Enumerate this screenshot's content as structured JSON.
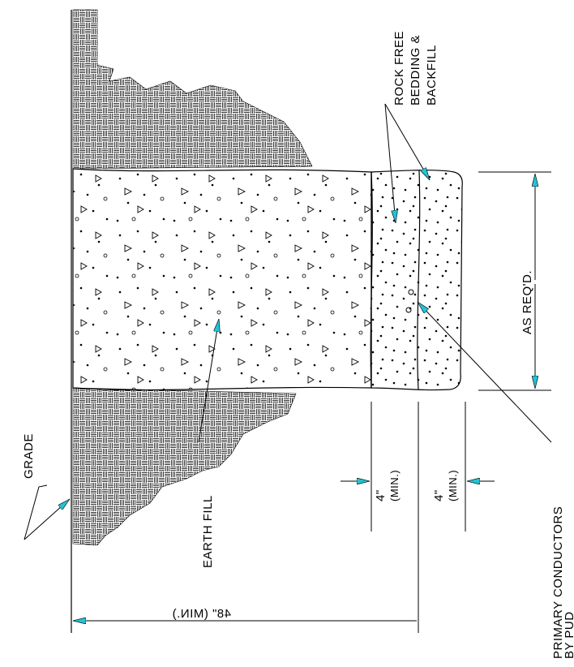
{
  "labels": {
    "rock_free_line1": "ROCK FREE",
    "rock_free_line2": "BEDDING &",
    "rock_free_line3": "BACKFILL",
    "as_reqd": "AS REQ'D.",
    "grade": "GRADE",
    "earth_fill": "EARTH FILL",
    "dim_4_a": "4\"",
    "dim_4_a_min": "(MIN.)",
    "dim_4_b": "4\"",
    "dim_4_b_min": "(MIN.)",
    "primary_line1": "PRIMARY CONDUCTORS",
    "primary_line2": "BY PUD",
    "depth": "48\" (MIN.)"
  },
  "colors": {
    "line": "#000000",
    "arrow": "#22c3d6"
  }
}
